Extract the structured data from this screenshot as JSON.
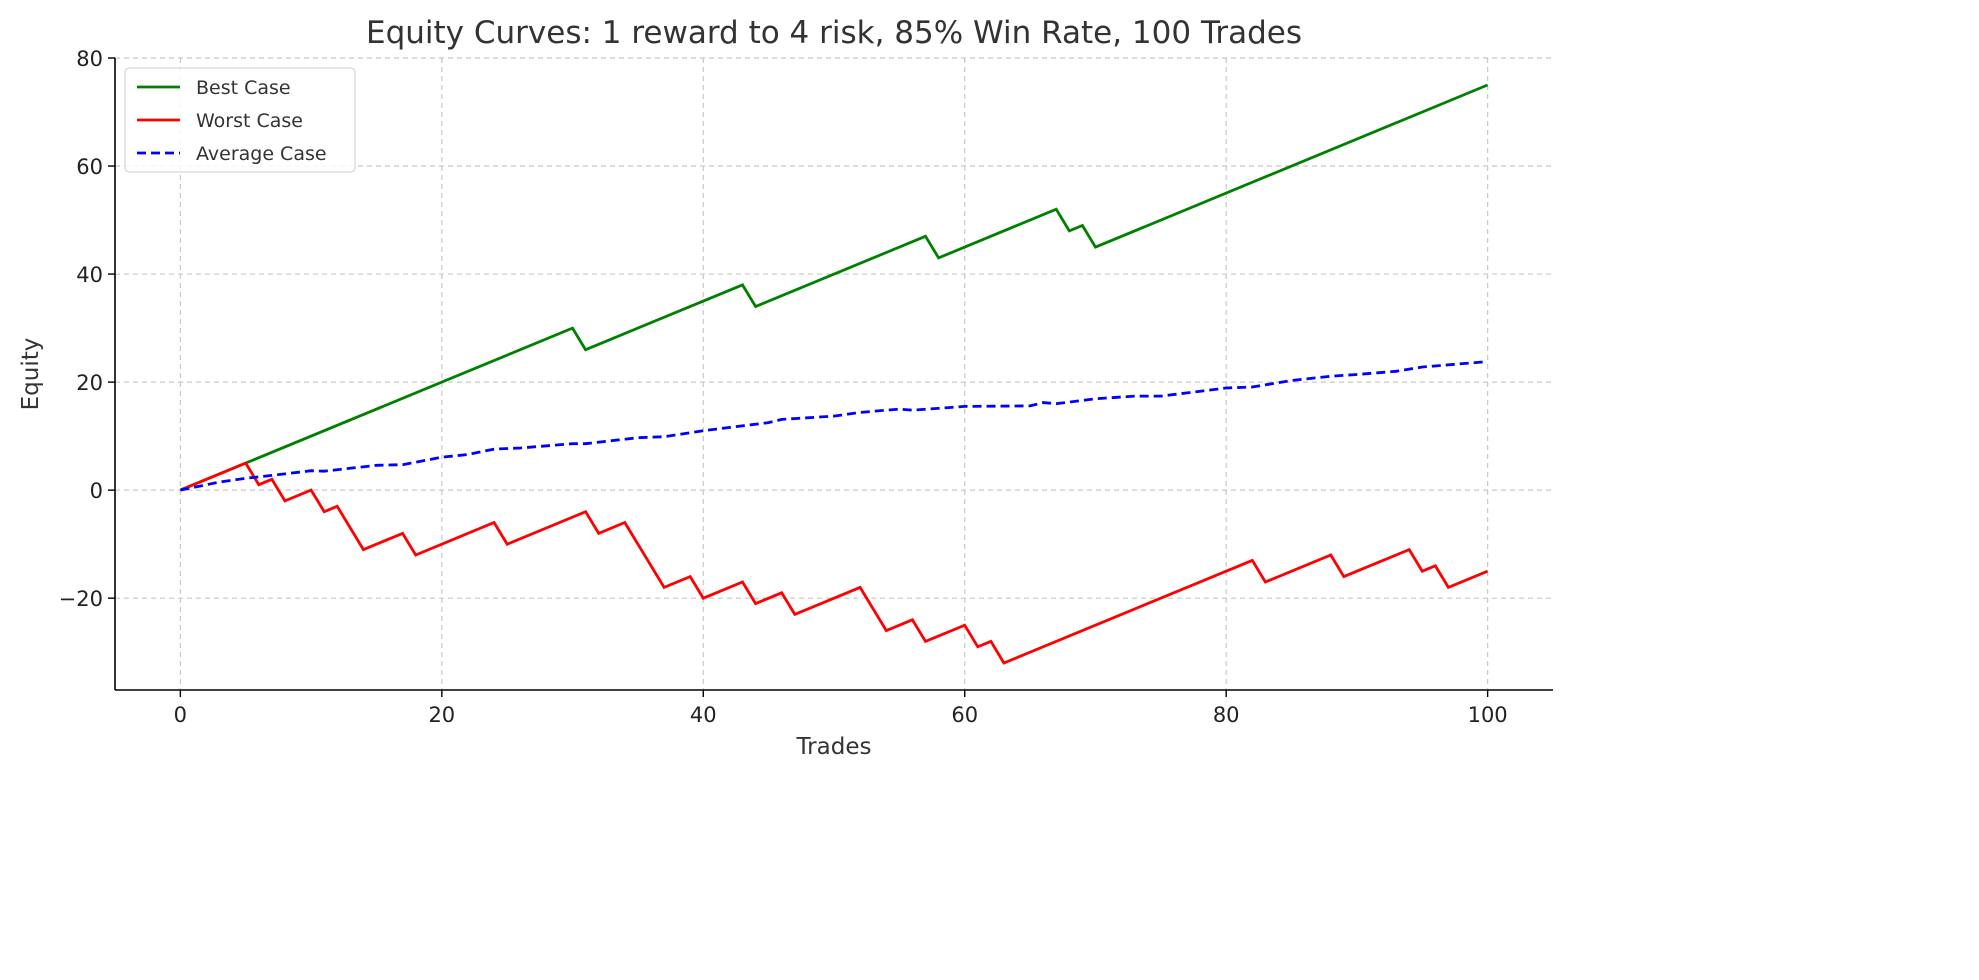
{
  "chart_data": {
    "type": "line",
    "title": "Equity Curves: 1 reward to 4 risk, 85% Win Rate, 100 Trades",
    "xlabel": "Trades",
    "ylabel": "Equity",
    "xlim": [
      -5,
      105
    ],
    "ylim": [
      -37,
      80
    ],
    "xticks": [
      0,
      20,
      40,
      60,
      80,
      100
    ],
    "yticks": [
      -20,
      0,
      20,
      40,
      60,
      80
    ],
    "ytick_labels": [
      "−20",
      "0",
      "20",
      "40",
      "60",
      "80"
    ],
    "grid": true,
    "legend_position": "top-left",
    "series": [
      {
        "name": "Best Case",
        "color": "#008000",
        "style": "solid",
        "points": [
          [
            0,
            0
          ],
          [
            30,
            30
          ],
          [
            31,
            26
          ],
          [
            43,
            38
          ],
          [
            44,
            34
          ],
          [
            57,
            47
          ],
          [
            58,
            43
          ],
          [
            67,
            52
          ],
          [
            68,
            48
          ],
          [
            69,
            49
          ],
          [
            70,
            45
          ],
          [
            100,
            75
          ]
        ]
      },
      {
        "name": "Worst Case",
        "color": "#ff0000",
        "style": "solid",
        "points": [
          [
            0,
            0
          ],
          [
            5,
            5
          ],
          [
            6,
            1
          ],
          [
            7,
            2
          ],
          [
            8,
            -2
          ],
          [
            10,
            0
          ],
          [
            11,
            -4
          ],
          [
            12,
            -3
          ],
          [
            14,
            -11
          ],
          [
            17,
            -8
          ],
          [
            18,
            -12
          ],
          [
            24,
            -6
          ],
          [
            25,
            -10
          ],
          [
            31,
            -4
          ],
          [
            32,
            -8
          ],
          [
            34,
            -6
          ],
          [
            37,
            -18
          ],
          [
            39,
            -16
          ],
          [
            40,
            -20
          ],
          [
            43,
            -17
          ],
          [
            44,
            -21
          ],
          [
            46,
            -19
          ],
          [
            47,
            -23
          ],
          [
            52,
            -18
          ],
          [
            54,
            -26
          ],
          [
            56,
            -24
          ],
          [
            57,
            -28
          ],
          [
            60,
            -25
          ],
          [
            61,
            -29
          ],
          [
            62,
            -28
          ],
          [
            63,
            -32
          ],
          [
            82,
            -13
          ],
          [
            83,
            -17
          ],
          [
            88,
            -12
          ],
          [
            89,
            -16
          ],
          [
            94,
            -11
          ],
          [
            95,
            -15
          ],
          [
            96,
            -14
          ],
          [
            97,
            -18
          ],
          [
            100,
            -15
          ]
        ]
      },
      {
        "name": "Average Case",
        "color": "#0000ff",
        "style": "dashed",
        "points": [
          [
            0,
            0
          ],
          [
            3,
            1.5
          ],
          [
            5,
            2.2
          ],
          [
            8,
            3
          ],
          [
            10,
            3.6
          ],
          [
            11,
            3.5
          ],
          [
            15,
            4.6
          ],
          [
            17,
            4.7
          ],
          [
            20,
            6.1
          ],
          [
            22,
            6.6
          ],
          [
            24,
            7.6
          ],
          [
            26,
            7.8
          ],
          [
            30,
            8.6
          ],
          [
            31,
            8.6
          ],
          [
            35,
            9.7
          ],
          [
            37,
            9.9
          ],
          [
            40,
            11
          ],
          [
            45,
            12.5
          ],
          [
            46,
            13.1
          ],
          [
            50,
            13.7
          ],
          [
            52,
            14.4
          ],
          [
            55,
            15
          ],
          [
            56,
            14.8
          ],
          [
            60,
            15.5
          ],
          [
            65,
            15.6
          ],
          [
            66,
            16.2
          ],
          [
            67,
            16
          ],
          [
            70,
            16.9
          ],
          [
            73,
            17.4
          ],
          [
            75,
            17.4
          ],
          [
            77,
            18
          ],
          [
            80,
            18.9
          ],
          [
            82,
            19.1
          ],
          [
            85,
            20.3
          ],
          [
            88,
            21.1
          ],
          [
            90,
            21.4
          ],
          [
            93,
            22
          ],
          [
            95,
            22.8
          ],
          [
            100,
            23.8
          ]
        ]
      }
    ]
  }
}
